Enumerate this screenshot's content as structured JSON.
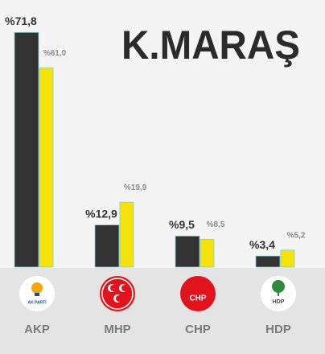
{
  "chart_data": {
    "type": "bar",
    "title": "K.MARAŞ",
    "categories": [
      "AKP",
      "MHP",
      "CHP",
      "HDP"
    ],
    "logo_texts": [
      "AK PARTİ",
      null,
      "CHP",
      "HDP"
    ],
    "series": [
      {
        "color": "#333333",
        "values": [
          71.8,
          12.9,
          9.5,
          3.4
        ],
        "value_labels": [
          "%71,8",
          "%12,9",
          "%9,5",
          "%3,4"
        ]
      },
      {
        "color": "#f5e20a",
        "values": [
          61.0,
          19.9,
          8.5,
          5.2
        ],
        "value_labels": [
          "%61,0",
          "%19,9",
          "%8,5",
          "%5,2"
        ]
      }
    ],
    "ylim": [
      0,
      80
    ]
  }
}
